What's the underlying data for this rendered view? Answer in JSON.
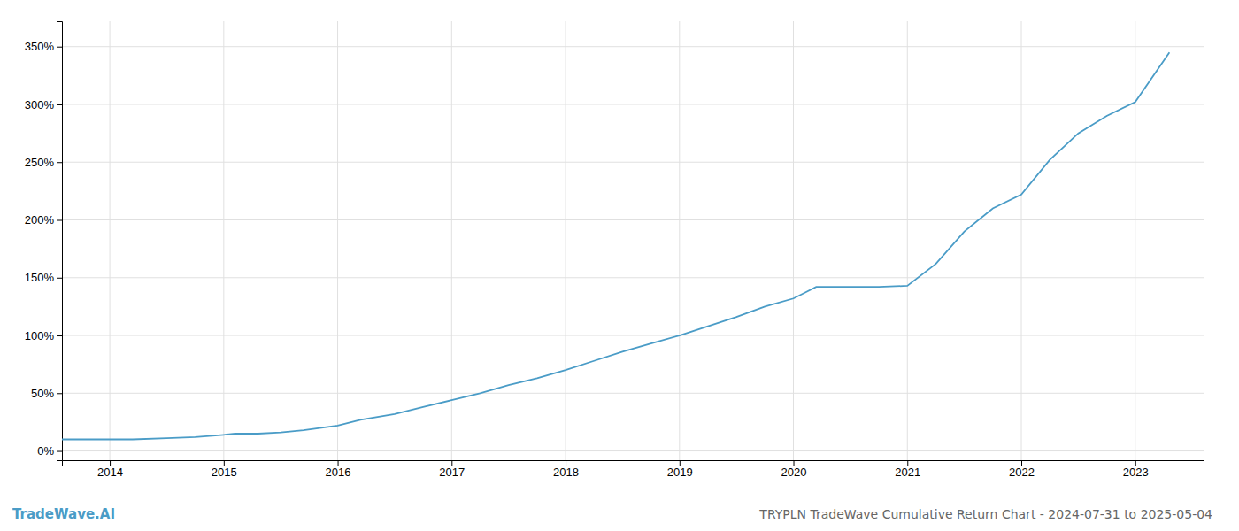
{
  "chart_data": {
    "type": "line",
    "title": "TRYPLN TradeWave Cumulative Return Chart - 2024-07-31 to 2025-05-04",
    "annotations": [
      {
        "text": "TradeWave.AI",
        "color": "#4a9cc7"
      }
    ],
    "color": "#4a9cc7",
    "grid": true,
    "xlim": [
      2013.58,
      2023.6
    ],
    "ylim": [
      -0.08,
      3.72
    ],
    "xticks": [
      2014,
      2015,
      2016,
      2017,
      2018,
      2019,
      2020,
      2021,
      2022,
      2023
    ],
    "yticks": [
      {
        "value": 0.0,
        "label": "0%"
      },
      {
        "value": 0.5,
        "label": "50%"
      },
      {
        "value": 1.0,
        "label": "100%"
      },
      {
        "value": 1.5,
        "label": "150%"
      },
      {
        "value": 2.0,
        "label": "200%"
      },
      {
        "value": 2.5,
        "label": "250%"
      },
      {
        "value": 3.0,
        "label": "300%"
      },
      {
        "value": 3.5,
        "label": "350%"
      }
    ],
    "x": [
      2013.58,
      2013.75,
      2014.0,
      2014.2,
      2014.5,
      2014.75,
      2015.0,
      2015.1,
      2015.3,
      2015.5,
      2015.7,
      2016.0,
      2016.2,
      2016.5,
      2016.75,
      2017.0,
      2017.25,
      2017.5,
      2017.75,
      2018.0,
      2018.25,
      2018.5,
      2018.75,
      2019.0,
      2019.25,
      2019.5,
      2019.75,
      2020.0,
      2020.1,
      2020.2,
      2020.5,
      2020.75,
      2021.0,
      2021.25,
      2021.5,
      2021.75,
      2022.0,
      2022.25,
      2022.5,
      2022.75,
      2023.0,
      2023.3
    ],
    "values": [
      0.1,
      0.1,
      0.1,
      0.1,
      0.11,
      0.12,
      0.14,
      0.15,
      0.15,
      0.16,
      0.18,
      0.22,
      0.27,
      0.32,
      0.38,
      0.44,
      0.5,
      0.57,
      0.63,
      0.7,
      0.78,
      0.86,
      0.93,
      1.0,
      1.08,
      1.16,
      1.25,
      1.32,
      1.37,
      1.42,
      1.42,
      1.42,
      1.43,
      1.62,
      1.9,
      2.1,
      2.22,
      2.52,
      2.75,
      2.9,
      3.02,
      3.45
    ]
  }
}
